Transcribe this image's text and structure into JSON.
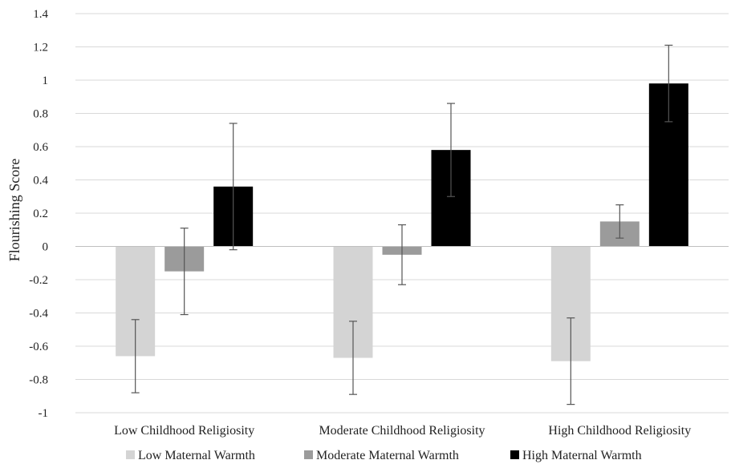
{
  "chart_data": {
    "type": "bar",
    "title": "",
    "xlabel": "",
    "ylabel": "Flourishing Score",
    "ylim": [
      -1,
      1.4
    ],
    "yticks": [
      -1,
      -0.8,
      -0.6,
      -0.4,
      -0.2,
      0,
      0.2,
      0.4,
      0.6,
      0.8,
      1,
      1.2,
      1.4
    ],
    "ytick_labels": [
      "-1",
      "-0.8",
      "-0.6",
      "-0.4",
      "-0.2",
      "0",
      "0.2",
      "0.4",
      "0.6",
      "0.8",
      "1",
      "1.2",
      "1.4"
    ],
    "grid": true,
    "legend_position": "bottom",
    "categories": [
      "Low Childhood Religiosity",
      "Moderate Childhood Religiosity",
      "High Childhood Religiosity"
    ],
    "series": [
      {
        "name": "Low Maternal Warmth",
        "color": "#d4d4d4",
        "values": [
          -0.66,
          -0.67,
          -0.69
        ],
        "error_low": [
          -0.88,
          -0.89,
          -0.95
        ],
        "error_high": [
          -0.44,
          -0.45,
          -0.43
        ]
      },
      {
        "name": "Moderate Maternal Warmth",
        "color": "#9b9b9b",
        "values": [
          -0.15,
          -0.05,
          0.15
        ],
        "error_low": [
          -0.41,
          -0.23,
          0.05
        ],
        "error_high": [
          0.11,
          0.13,
          0.25
        ]
      },
      {
        "name": "High Maternal Warmth",
        "color": "#000000",
        "values": [
          0.36,
          0.58,
          0.98
        ],
        "error_low": [
          -0.02,
          0.3,
          0.75
        ],
        "error_high": [
          0.74,
          0.86,
          1.21
        ]
      }
    ]
  }
}
